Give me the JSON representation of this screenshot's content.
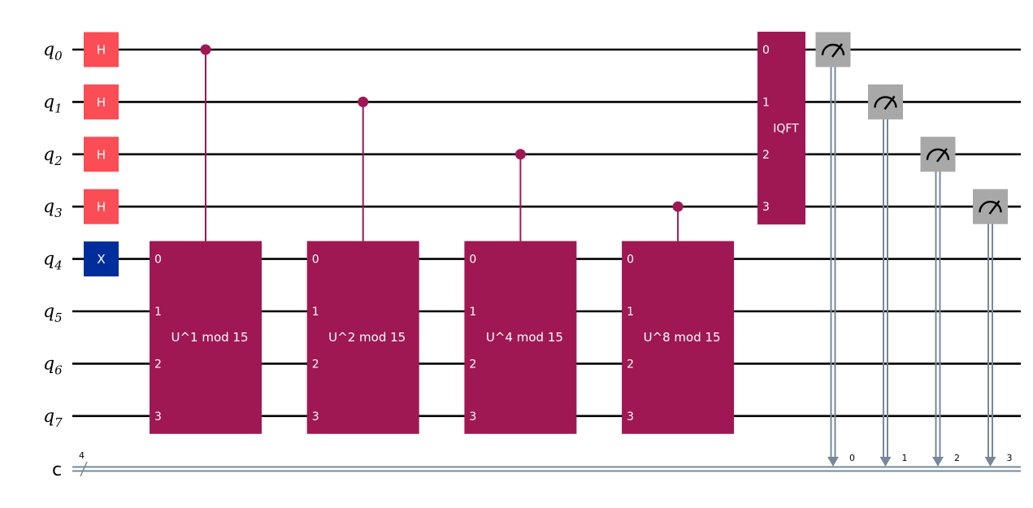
{
  "colors": {
    "wire": "#000000",
    "classical_wire": "#778899",
    "hadamard": "#fa4d56",
    "x_gate": "#002d9c",
    "controlled_unitary": "#9f1853",
    "measure": "#a8a8a8",
    "background": "#ffffff"
  },
  "qubits": [
    {
      "letter": "q",
      "index": "0"
    },
    {
      "letter": "q",
      "index": "1"
    },
    {
      "letter": "q",
      "index": "2"
    },
    {
      "letter": "q",
      "index": "3"
    },
    {
      "letter": "q",
      "index": "4"
    },
    {
      "letter": "q",
      "index": "5"
    },
    {
      "letter": "q",
      "index": "6"
    },
    {
      "letter": "q",
      "index": "7"
    }
  ],
  "classical_register": {
    "label": "c",
    "size": "4"
  },
  "single_gates": [
    {
      "qubit": 0,
      "label": "H",
      "kind": "hadamard"
    },
    {
      "qubit": 1,
      "label": "H",
      "kind": "hadamard"
    },
    {
      "qubit": 2,
      "label": "H",
      "kind": "hadamard"
    },
    {
      "qubit": 3,
      "label": "H",
      "kind": "hadamard"
    },
    {
      "qubit": 4,
      "label": "X",
      "kind": "x_gate"
    }
  ],
  "controlled_gates": [
    {
      "control": 0,
      "label": "U^1 mod 15",
      "target_qubits": [
        4,
        5,
        6,
        7
      ],
      "port_labels": [
        "0",
        "1",
        "2",
        "3"
      ]
    },
    {
      "control": 1,
      "label": "U^2 mod 15",
      "target_qubits": [
        4,
        5,
        6,
        7
      ],
      "port_labels": [
        "0",
        "1",
        "2",
        "3"
      ]
    },
    {
      "control": 2,
      "label": "U^4 mod 15",
      "target_qubits": [
        4,
        5,
        6,
        7
      ],
      "port_labels": [
        "0",
        "1",
        "2",
        "3"
      ]
    },
    {
      "control": 3,
      "label": "U^8 mod 15",
      "target_qubits": [
        4,
        5,
        6,
        7
      ],
      "port_labels": [
        "0",
        "1",
        "2",
        "3"
      ]
    }
  ],
  "iqft": {
    "label": "IQFT",
    "qubits": [
      0,
      1,
      2,
      3
    ],
    "port_labels": [
      "0",
      "1",
      "2",
      "3"
    ]
  },
  "measurements": [
    {
      "qubit": 0,
      "bit": "0"
    },
    {
      "qubit": 1,
      "bit": "1"
    },
    {
      "qubit": 2,
      "bit": "2"
    },
    {
      "qubit": 3,
      "bit": "3"
    }
  ]
}
